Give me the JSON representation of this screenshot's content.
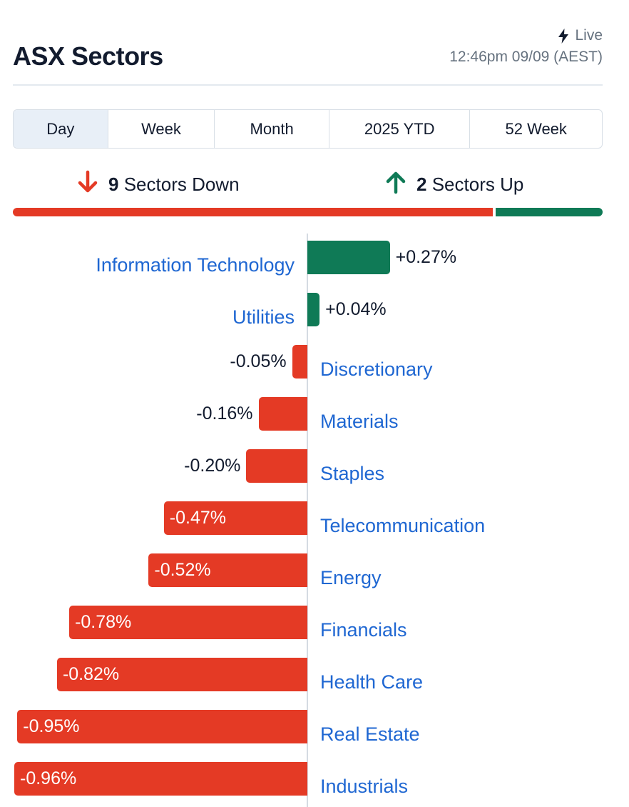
{
  "header": {
    "title": "ASX Sectors",
    "live_label": "Live",
    "timestamp": "12:46pm 09/09 (AEST)"
  },
  "tabs": [
    {
      "label": "Day",
      "active": true
    },
    {
      "label": "Week",
      "active": false
    },
    {
      "label": "Month",
      "active": false
    },
    {
      "label": "2025 YTD",
      "active": false
    },
    {
      "label": "52 Week",
      "active": false
    }
  ],
  "summary": {
    "down_count": "9",
    "down_label": "Sectors Down",
    "up_count": "2",
    "up_label": "Sectors Up"
  },
  "colors": {
    "up": "#0f7a56",
    "down": "#e43a25",
    "link": "#1f67d2",
    "text": "#121b2e",
    "muted": "#66727f"
  },
  "icons": {
    "live": "lightning-bolt-icon",
    "down": "arrow-down-icon",
    "up": "arrow-up-icon"
  },
  "chart_data": {
    "type": "bar",
    "orientation": "horizontal",
    "unit": "%",
    "categories": [
      "Information Technology",
      "Utilities",
      "Discretionary",
      "Materials",
      "Staples",
      "Telecommunication",
      "Energy",
      "Financials",
      "Health Care",
      "Real Estate",
      "Industrials"
    ],
    "values": [
      0.27,
      0.04,
      -0.05,
      -0.16,
      -0.2,
      -0.47,
      -0.52,
      -0.78,
      -0.82,
      -0.95,
      -0.96
    ],
    "labels": [
      "+0.27%",
      "+0.04%",
      "-0.05%",
      "-0.16%",
      "-0.20%",
      "-0.47%",
      "-0.52%",
      "-0.78%",
      "-0.82%",
      "-0.95%",
      "-0.96%"
    ],
    "xlim": [
      -0.96,
      0.96
    ],
    "grid": false
  }
}
